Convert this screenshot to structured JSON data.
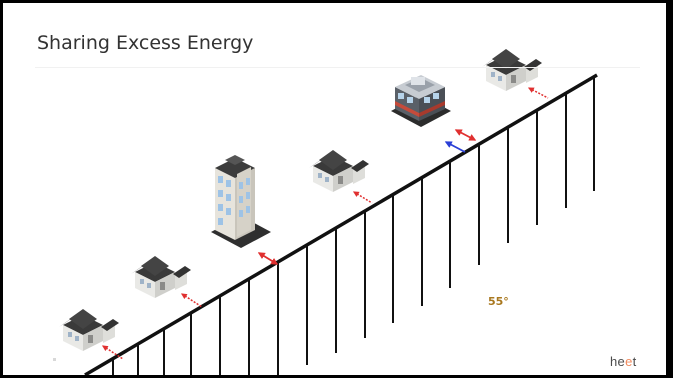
{
  "slide": {
    "title": "Sharing Excess Energy",
    "temperature_label": "55°",
    "logo": {
      "part1": "he",
      "part2": "e",
      "part3": "t"
    }
  },
  "colors": {
    "pipe": "#111111",
    "flow_out": "#e03030",
    "flow_in": "#2a3fd6",
    "temperature": "#a9781f",
    "logo_accent": "#f08a5d"
  },
  "buildings": [
    {
      "name": "house-1",
      "kind": "house"
    },
    {
      "name": "house-2",
      "kind": "house"
    },
    {
      "name": "apartment-tower",
      "kind": "tower"
    },
    {
      "name": "house-3",
      "kind": "house"
    },
    {
      "name": "commercial-building",
      "kind": "commercial"
    },
    {
      "name": "house-4",
      "kind": "house"
    }
  ]
}
